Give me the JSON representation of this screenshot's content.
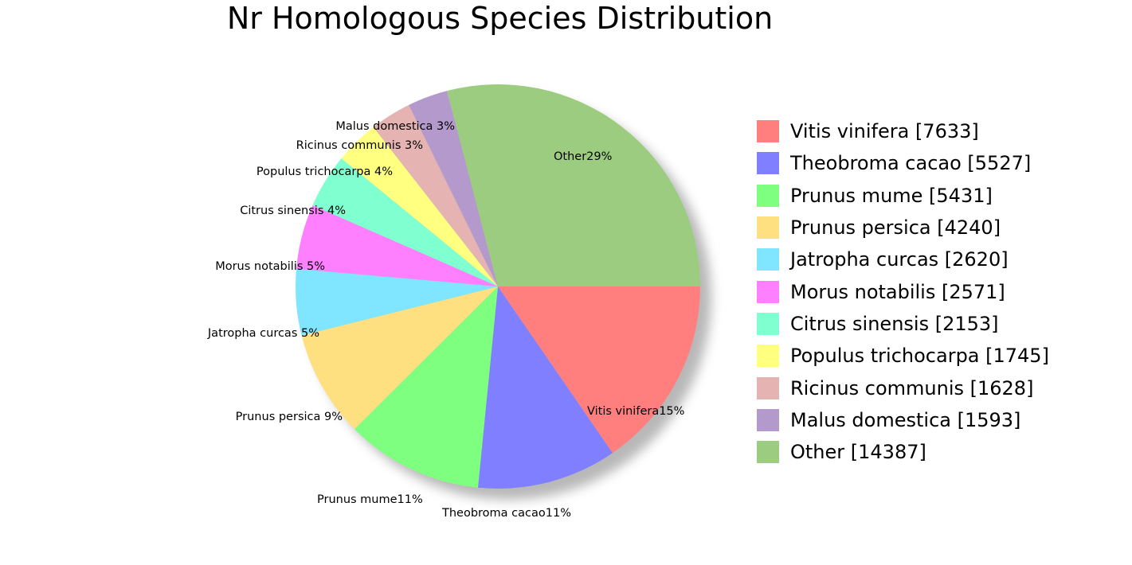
{
  "chart_data": {
    "type": "pie",
    "title": "Nr Homologous Species Distribution",
    "legend_position": "right",
    "slices": [
      {
        "name": "Vitis vinifera",
        "value": 7633,
        "color": "#ff7f7f",
        "legend": "Vitis vinifera [7633]",
        "label": "Vitis vinifera15%"
      },
      {
        "name": "Theobroma cacao",
        "value": 5527,
        "color": "#7f7fff",
        "legend": "Theobroma cacao [5527]",
        "label": "Theobroma cacao11%"
      },
      {
        "name": "Prunus mume",
        "value": 5431,
        "color": "#7fff7f",
        "legend": "Prunus mume [5431]",
        "label": "Prunus mume11%"
      },
      {
        "name": "Prunus persica",
        "value": 4240,
        "color": "#ffe080",
        "legend": "Prunus persica [4240]",
        "label": "Prunus persica 9%"
      },
      {
        "name": "Jatropha curcas",
        "value": 2620,
        "color": "#80e6ff",
        "legend": "Jatropha curcas [2620]",
        "label": "Jatropha curcas 5%"
      },
      {
        "name": "Morus notabilis",
        "value": 2571,
        "color": "#ff80ff",
        "legend": "Morus notabilis [2571]",
        "label": "Morus notabilis 5%"
      },
      {
        "name": "Citrus sinensis",
        "value": 2153,
        "color": "#80ffd0",
        "legend": "Citrus sinensis [2153]",
        "label": "Citrus sinensis 4%"
      },
      {
        "name": "Populus trichocarpa",
        "value": 1745,
        "color": "#ffff80",
        "legend": "Populus trichocarpa [1745]",
        "label": "Populus trichocarpa 4%"
      },
      {
        "name": "Ricinus communis",
        "value": 1628,
        "color": "#e6b3b3",
        "legend": "Ricinus communis [1628]",
        "label": "Ricinus communis 3%"
      },
      {
        "name": "Malus domestica",
        "value": 1593,
        "color": "#b399cc",
        "legend": "Malus domestica [1593]",
        "label": "Malus domestica 3%"
      },
      {
        "name": "Other",
        "value": 14387,
        "color": "#9ccc7f",
        "legend": "Other [14387]",
        "label": "Other29%"
      }
    ]
  }
}
